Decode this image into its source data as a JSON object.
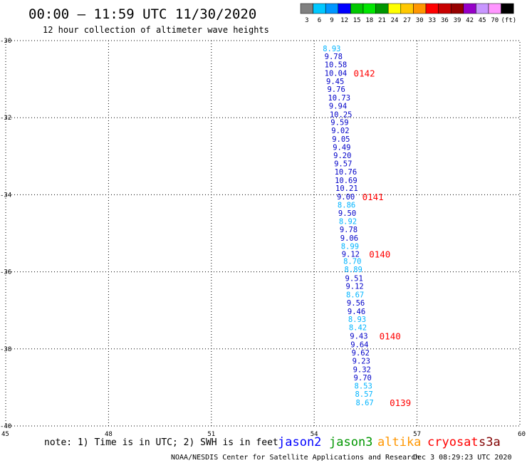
{
  "header": {
    "title": "00:00 – 11:59 UTC 11/30/2020",
    "subtitle": "12 hour collection of altimeter wave heights"
  },
  "color_scale": {
    "labels": [
      "3",
      "6",
      "9",
      "12",
      "15",
      "18",
      "21",
      "24",
      "27",
      "30",
      "33",
      "36",
      "39",
      "42",
      "45",
      "70",
      "(ft)"
    ],
    "colors": [
      "#808080",
      "#00c8ff",
      "#0096ff",
      "#0000ff",
      "#00c800",
      "#00e600",
      "#009600",
      "#ffff00",
      "#ffc800",
      "#ff9600",
      "#ff0000",
      "#c80000",
      "#960000",
      "#9600c8",
      "#c896ff",
      "#ff96ff",
      "#000000"
    ]
  },
  "footer": {
    "note": "note:  1) Time is in UTC;  2) SWH is in feet",
    "credit": "NOAA/NESDIS Center for Satellite Applications and Research",
    "timestamp": "Dec  3 08:29:23 UTC 2020",
    "missions": [
      {
        "name": "jason2",
        "color": "#0000ff"
      },
      {
        "name": "jason3",
        "color": "#009600"
      },
      {
        "name": "altika",
        "color": "#ff9600"
      },
      {
        "name": "cryosat",
        "color": "#ff0000"
      },
      {
        "name": "s3a",
        "color": "#800000"
      }
    ]
  },
  "chart_data": {
    "type": "scatter",
    "title": "00:00 – 11:59 UTC 11/30/2020",
    "subtitle": "12 hour collection of altimeter wave heights",
    "xlim": [
      45,
      60
    ],
    "ylim": [
      -40,
      -30
    ],
    "x_ticks": [
      "45",
      "48",
      "51",
      "54",
      "57",
      "60"
    ],
    "y_ticks": [
      "-30",
      "-32",
      "-34",
      "-36",
      "-38",
      "-40"
    ],
    "grid": true,
    "points": [
      {
        "lon": 54.25,
        "lat": -30.2,
        "swh": "8.93"
      },
      {
        "lon": 54.3,
        "lat": -30.41,
        "swh": "9.78"
      },
      {
        "lon": 54.3,
        "lat": -30.62,
        "swh": "10.58"
      },
      {
        "lon": 54.3,
        "lat": -30.84,
        "swh": "10.04"
      },
      {
        "lon": 54.35,
        "lat": -31.05,
        "swh": "9.45"
      },
      {
        "lon": 54.38,
        "lat": -31.26,
        "swh": "9.76"
      },
      {
        "lon": 54.4,
        "lat": -31.48,
        "swh": "10.73"
      },
      {
        "lon": 54.43,
        "lat": -31.69,
        "swh": "9.94"
      },
      {
        "lon": 54.45,
        "lat": -31.91,
        "swh": "10.25"
      },
      {
        "lon": 54.48,
        "lat": -32.12,
        "swh": "9.59"
      },
      {
        "lon": 54.5,
        "lat": -32.33,
        "swh": "9.02"
      },
      {
        "lon": 54.52,
        "lat": -32.55,
        "swh": "9.05"
      },
      {
        "lon": 54.54,
        "lat": -32.76,
        "swh": "9.49"
      },
      {
        "lon": 54.56,
        "lat": -32.98,
        "swh": "9.20"
      },
      {
        "lon": 54.58,
        "lat": -33.19,
        "swh": "9.57"
      },
      {
        "lon": 54.59,
        "lat": -33.4,
        "swh": "10.76"
      },
      {
        "lon": 54.6,
        "lat": -33.62,
        "swh": "10.69"
      },
      {
        "lon": 54.62,
        "lat": -33.83,
        "swh": "10.21"
      },
      {
        "lon": 54.66,
        "lat": -34.05,
        "swh": "9.00"
      },
      {
        "lon": 54.68,
        "lat": -34.26,
        "swh": "8.86"
      },
      {
        "lon": 54.7,
        "lat": -34.47,
        "swh": "9.50"
      },
      {
        "lon": 54.72,
        "lat": -34.69,
        "swh": "8.92"
      },
      {
        "lon": 54.74,
        "lat": -34.9,
        "swh": "9.78"
      },
      {
        "lon": 54.76,
        "lat": -35.12,
        "swh": "9.06"
      },
      {
        "lon": 54.78,
        "lat": -35.33,
        "swh": "8.99"
      },
      {
        "lon": 54.8,
        "lat": -35.54,
        "swh": "9.12"
      },
      {
        "lon": 54.85,
        "lat": -35.72,
        "swh": "8.70"
      },
      {
        "lon": 54.88,
        "lat": -35.93,
        "swh": "8.89"
      },
      {
        "lon": 54.9,
        "lat": -36.16,
        "swh": "9.51"
      },
      {
        "lon": 54.92,
        "lat": -36.37,
        "swh": "9.12"
      },
      {
        "lon": 54.93,
        "lat": -36.59,
        "swh": "8.67"
      },
      {
        "lon": 54.95,
        "lat": -36.8,
        "swh": "9.56"
      },
      {
        "lon": 54.97,
        "lat": -37.02,
        "swh": "9.46"
      },
      {
        "lon": 54.99,
        "lat": -37.23,
        "swh": "8.93"
      },
      {
        "lon": 55.01,
        "lat": -37.44,
        "swh": "8.42"
      },
      {
        "lon": 55.04,
        "lat": -37.66,
        "swh": "9.43"
      },
      {
        "lon": 55.06,
        "lat": -37.88,
        "swh": "9.64"
      },
      {
        "lon": 55.09,
        "lat": -38.1,
        "swh": "9.62"
      },
      {
        "lon": 55.11,
        "lat": -38.31,
        "swh": "9.23"
      },
      {
        "lon": 55.13,
        "lat": -38.53,
        "swh": "9.32"
      },
      {
        "lon": 55.15,
        "lat": -38.74,
        "swh": "9.70"
      },
      {
        "lon": 55.17,
        "lat": -38.96,
        "swh": "8.53"
      },
      {
        "lon": 55.19,
        "lat": -39.17,
        "swh": "8.57"
      },
      {
        "lon": 55.21,
        "lat": -39.39,
        "swh": "8.67"
      }
    ],
    "time_labels": [
      {
        "lon": 55.15,
        "lat": -30.84,
        "text": "0142"
      },
      {
        "lon": 55.4,
        "lat": -34.05,
        "text": "0141"
      },
      {
        "lon": 55.6,
        "lat": -35.54,
        "text": "0140"
      },
      {
        "lon": 55.9,
        "lat": -37.66,
        "text": "0140"
      },
      {
        "lon": 56.2,
        "lat": -39.39,
        "text": "0139"
      }
    ]
  }
}
